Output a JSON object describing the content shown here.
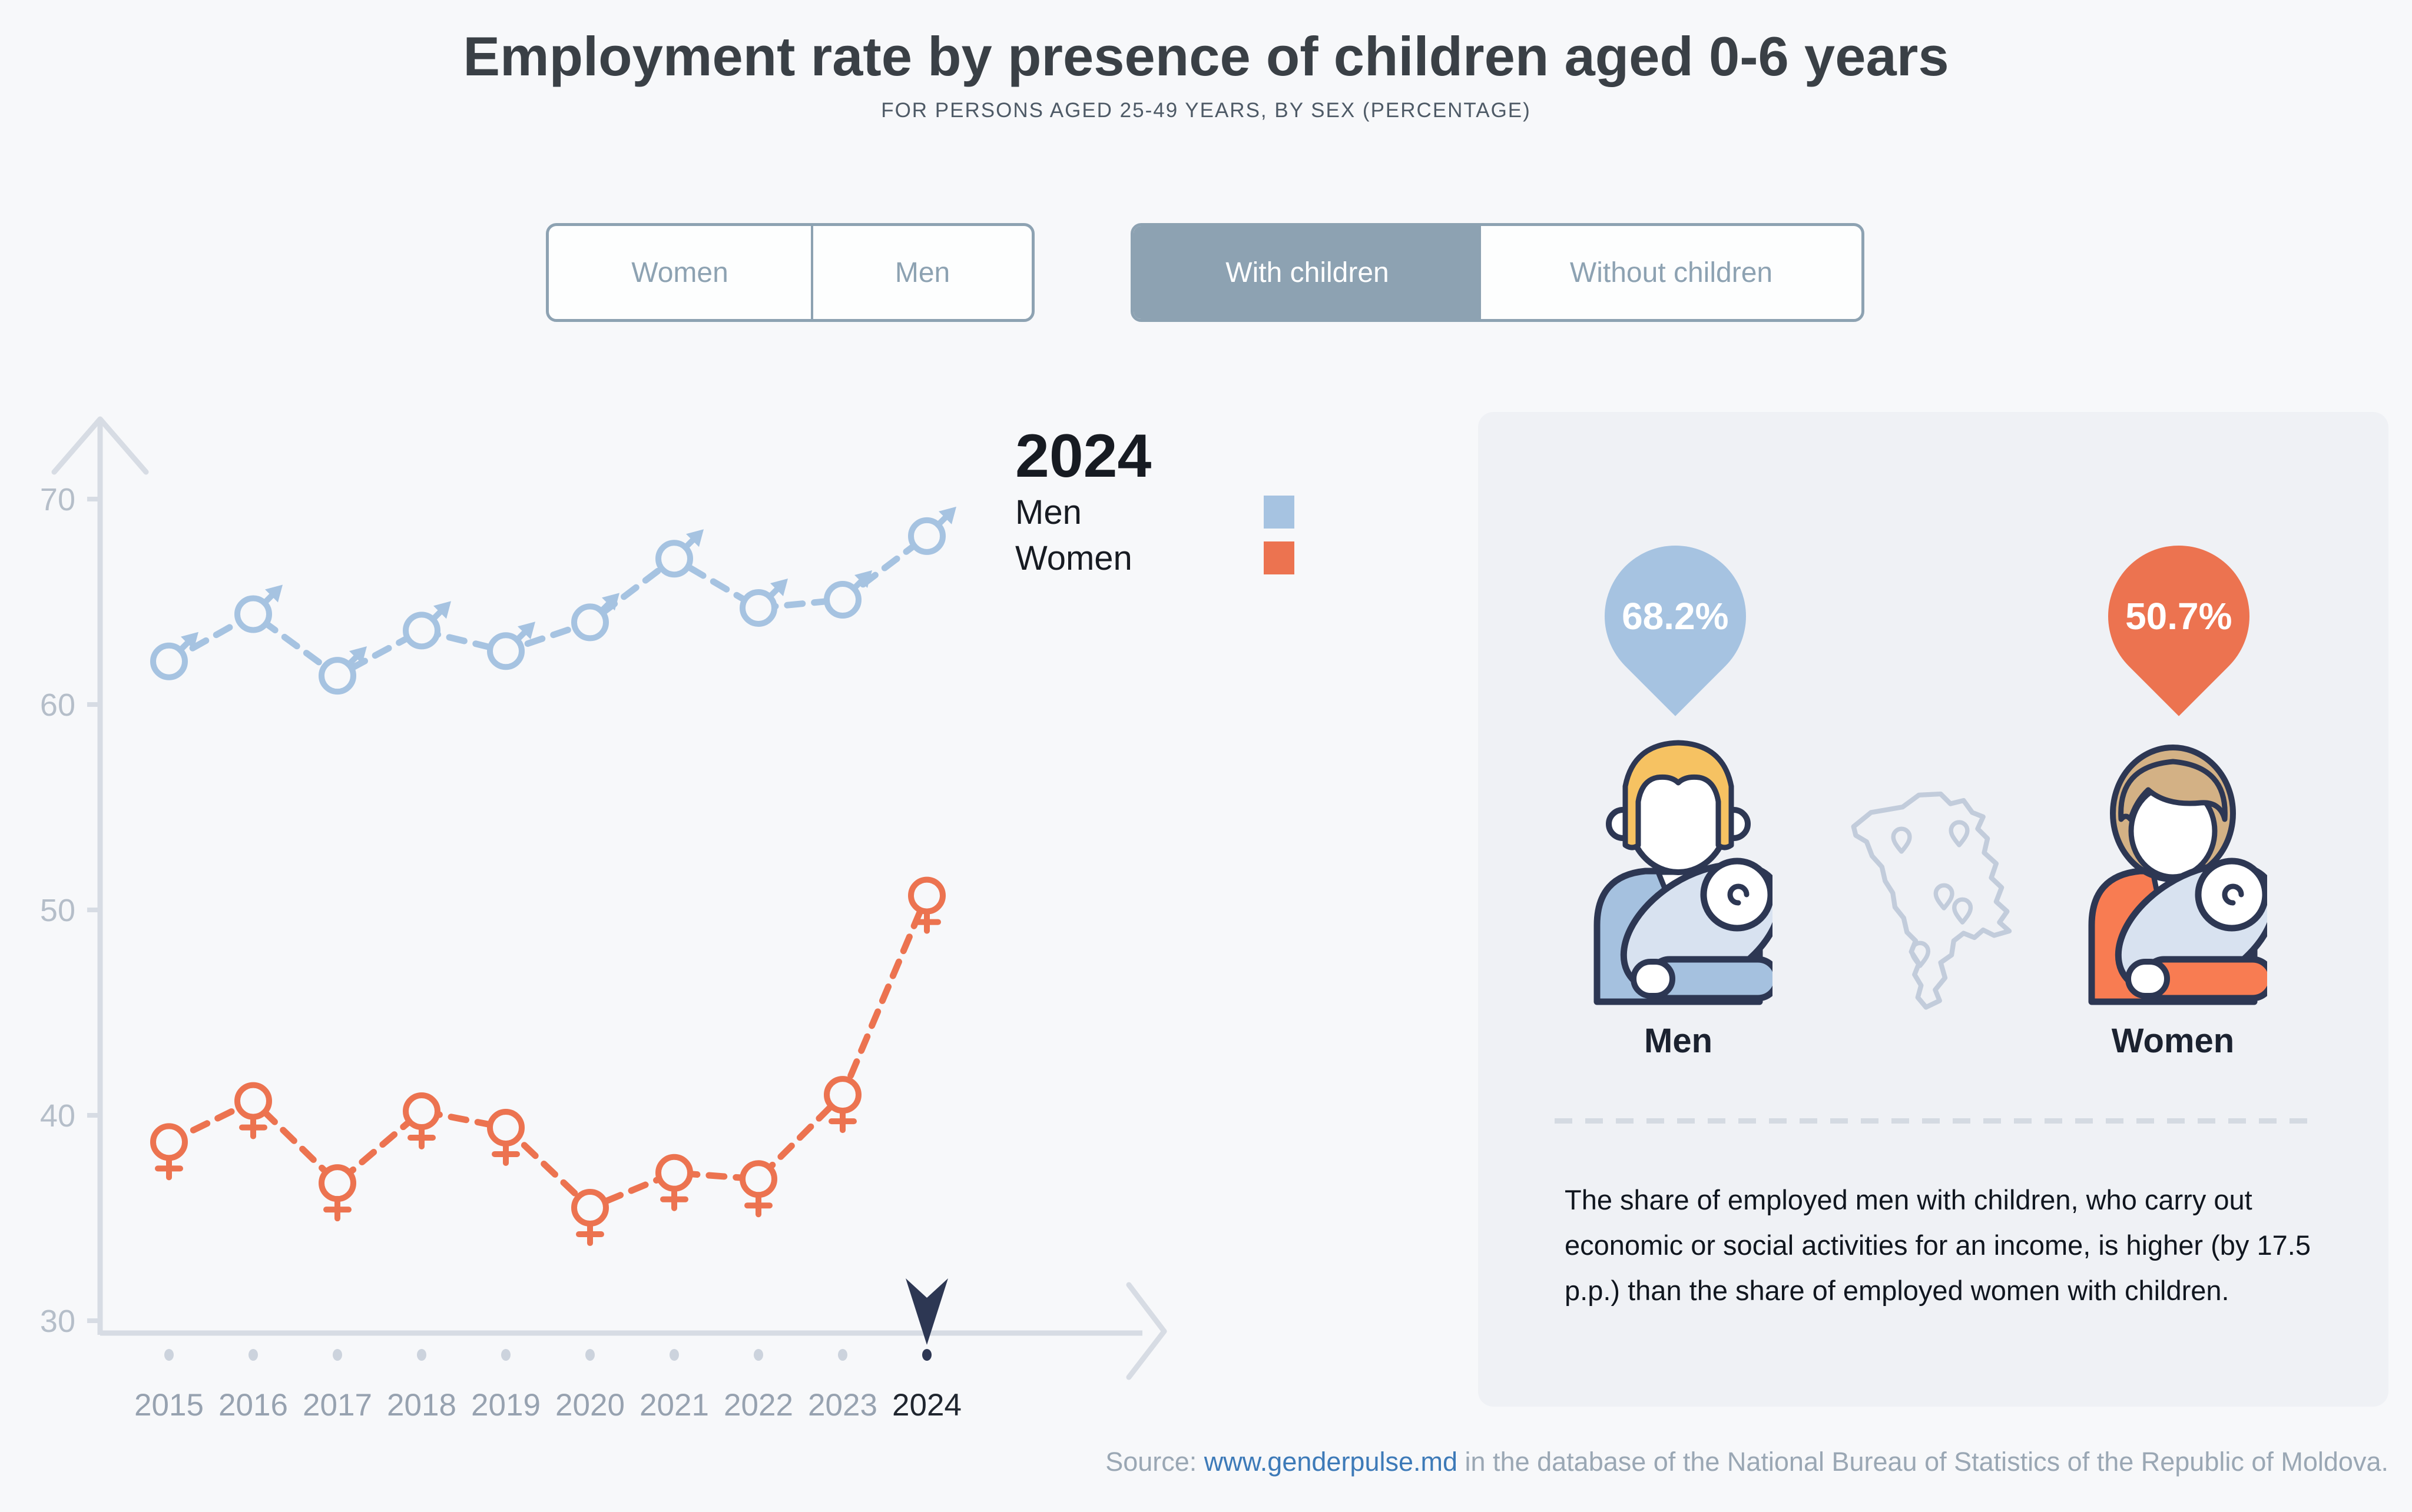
{
  "header": {
    "title": "Employment rate by presence of children aged 0-6 years",
    "subtitle": "FOR PERSONS AGED 25-49 YEARS, BY SEX (PERCENTAGE)"
  },
  "controls": {
    "sex_toggle": {
      "options": [
        {
          "label": "Women",
          "selected": false
        },
        {
          "label": "Men",
          "selected": false
        }
      ]
    },
    "children_toggle": {
      "options": [
        {
          "label": "With children",
          "selected": true
        },
        {
          "label": "Without children",
          "selected": false
        }
      ]
    }
  },
  "chart_data": {
    "type": "line",
    "x": [
      2015,
      2016,
      2017,
      2018,
      2019,
      2020,
      2021,
      2022,
      2023,
      2024
    ],
    "series": [
      {
        "name": "Men",
        "color": "#a6c3e1",
        "marker": "male",
        "values": [
          62.1,
          64.4,
          61.4,
          63.6,
          62.6,
          64.0,
          67.1,
          64.7,
          65.1,
          68.2
        ]
      },
      {
        "name": "Women",
        "color": "#ec7350",
        "marker": "female",
        "values": [
          38.7,
          40.7,
          36.7,
          40.2,
          39.4,
          35.5,
          37.2,
          36.9,
          41.0,
          50.7
        ]
      }
    ],
    "ylim": [
      30,
      72
    ],
    "yticks": [
      30,
      40,
      50,
      60,
      70
    ],
    "grid": false,
    "line_style": "dashed",
    "legend": {
      "position": "top-right",
      "title": "2024",
      "entries": [
        "Men",
        "Women"
      ]
    },
    "highlight_x": 2024
  },
  "panel": {
    "men_value": "68.2%",
    "women_value": "50.7%",
    "men_label": "Men",
    "women_label": "Women",
    "description": "The share of employed men with children, who carry out economic or social activities for an income, is higher (by 17.5 p.p.) than the share of employed women with children."
  },
  "source": {
    "label": "Source: ",
    "link_text": "www.genderpulse.md",
    "rest": " in the database of the National Bureau of Statistics of the Republic of Moldova."
  },
  "colors": {
    "background": "#f7f8fa",
    "panel_background": "#eff1f5",
    "accent_blue": "#a6c3e1",
    "accent_orange": "#ec7350",
    "axis": "#d7dce4",
    "tick_label": "#b5bec9",
    "year_label": "#97a2b0",
    "year_label_active": "#20262f",
    "navy_outline": "#2d3753",
    "toggle_blue_gray": "#8da2b2",
    "link_blue": "#3d7ab8",
    "hair_gold": "#f6c262",
    "hair_tan": "#d3b185",
    "suit_blue": "#a5c1df",
    "suit_orange": "#f87c52",
    "blanket": "#d8e2f0"
  }
}
